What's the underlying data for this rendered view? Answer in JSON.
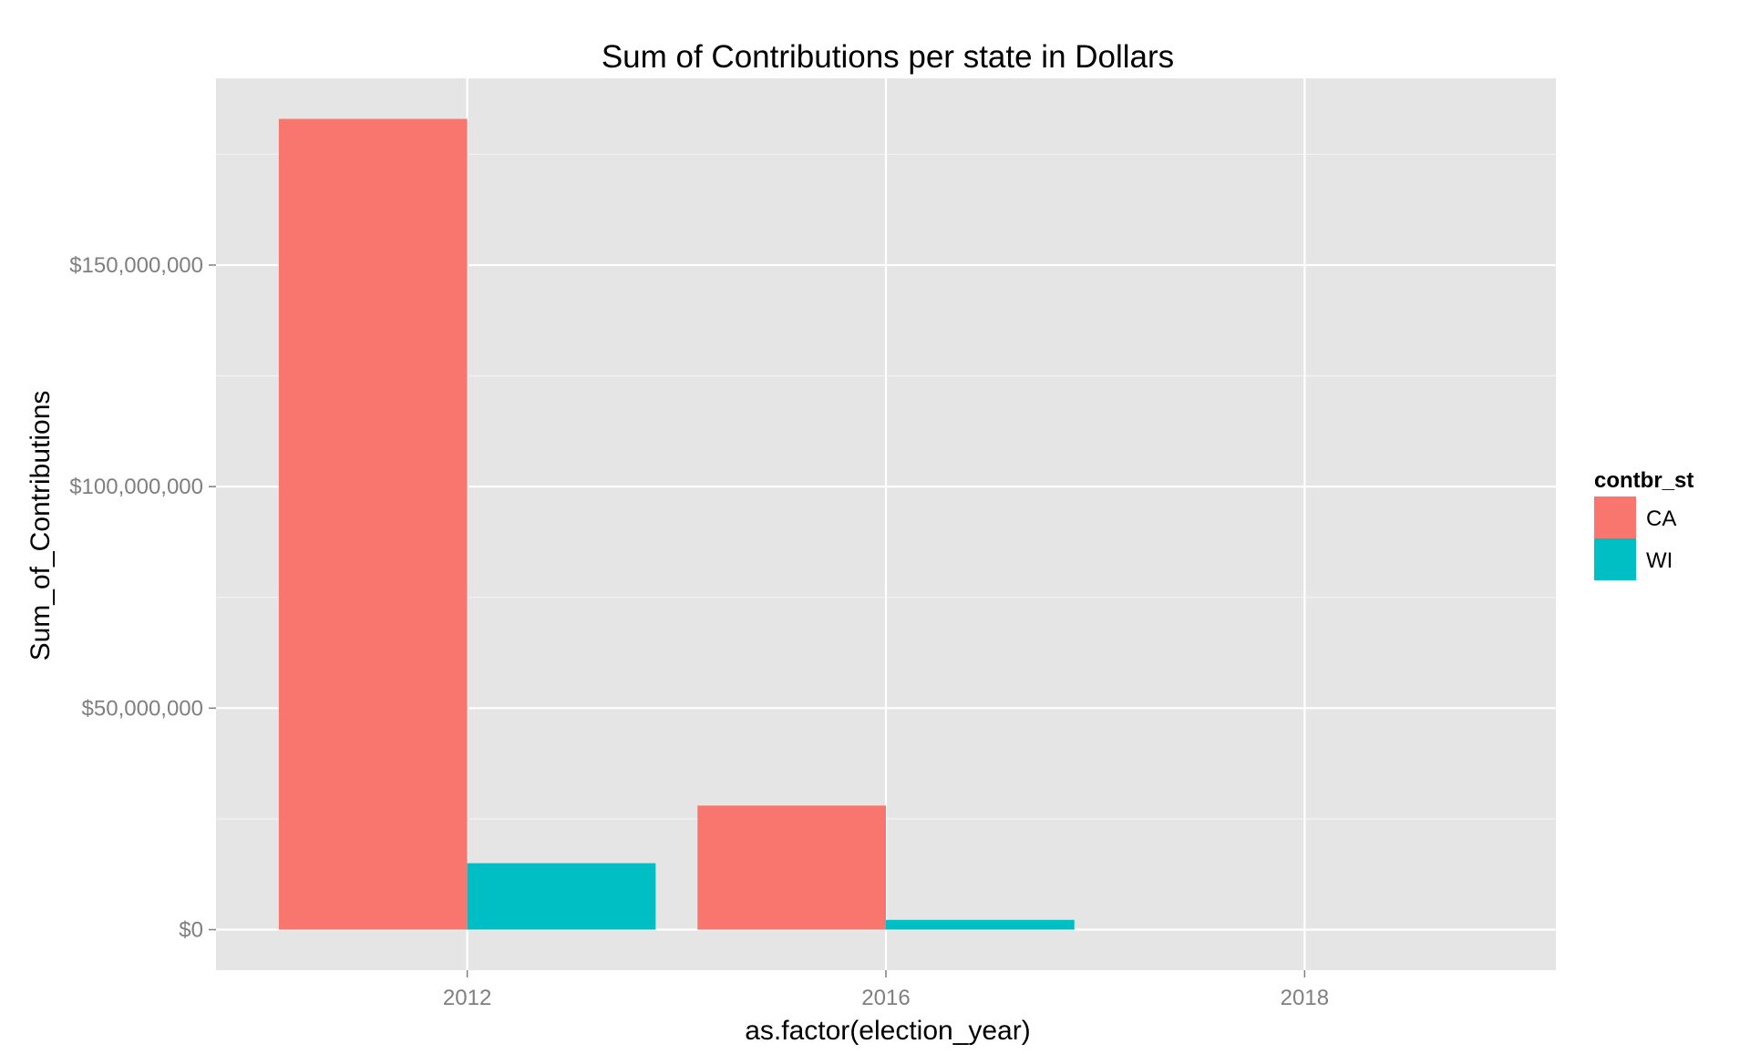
{
  "chart_data": {
    "type": "bar",
    "title": "Sum of Contributions per state in Dollars",
    "xlabel": "as.factor(election_year)",
    "ylabel": "Sum_of_Contributions",
    "categories": [
      "2012",
      "2016",
      "2018"
    ],
    "series": [
      {
        "name": "CA",
        "color": "#F8766D",
        "values": [
          183000000,
          28000000,
          0
        ]
      },
      {
        "name": "WI",
        "color": "#00BFC4",
        "values": [
          15000000,
          2200000,
          0
        ]
      }
    ],
    "y_ticks": [
      0,
      50000000,
      100000000,
      150000000
    ],
    "y_tick_labels": [
      "$0",
      "$50,000,000",
      "$100,000,000",
      "$150,000,000"
    ],
    "ylim": [
      -9150000,
      192150000
    ],
    "legend": {
      "title": "contbr_st",
      "position": "right"
    },
    "grid": true,
    "panel_color": "#E5E5E5",
    "grid_color": "#FFFFFF"
  }
}
